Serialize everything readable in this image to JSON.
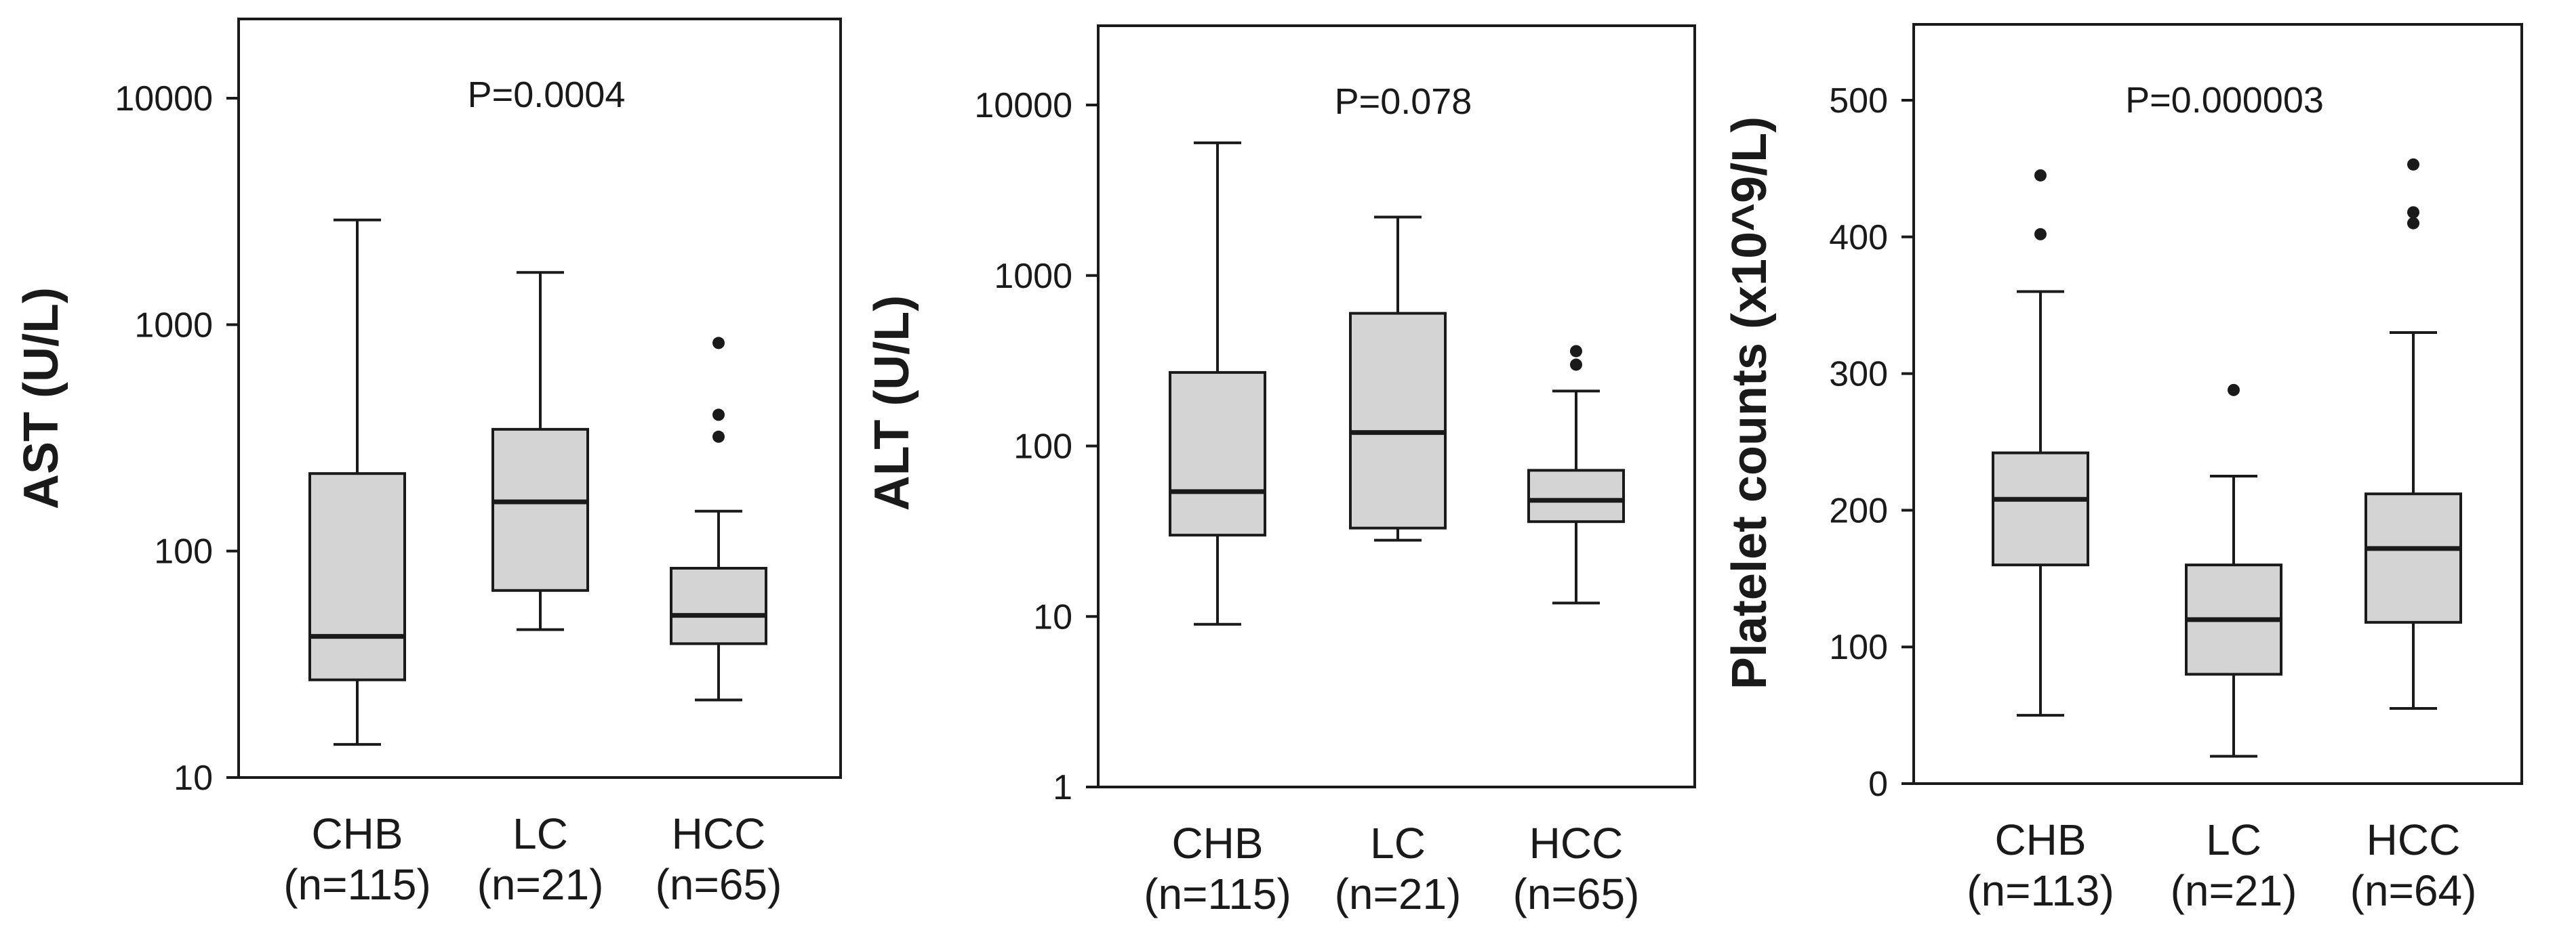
{
  "colors": {
    "box_fill": "#d4d4d4",
    "stroke": "#1a1a1a",
    "background": "#ffffff"
  },
  "chart_data": [
    {
      "type": "boxplot",
      "ylabel": "AST (U/L)",
      "yscale": "log",
      "ylim": [
        10,
        20000
      ],
      "yticks": [
        10,
        100,
        1000,
        10000
      ],
      "ytick_labels": [
        "10",
        "100",
        "1000",
        "10000"
      ],
      "annotation": "P=0.0004",
      "groups": [
        {
          "name": "CHB",
          "n_label": "(n=115)",
          "whisker_low": 14,
          "q1": 27,
          "median": 42,
          "q3": 220,
          "whisker_high": 2900,
          "outliers": []
        },
        {
          "name": "LC",
          "n_label": "(n=21)",
          "whisker_low": 45,
          "q1": 67,
          "median": 165,
          "q3": 345,
          "whisker_high": 1700,
          "outliers": []
        },
        {
          "name": "HCC",
          "n_label": "(n=65)",
          "whisker_low": 22,
          "q1": 39,
          "median": 52,
          "q3": 84,
          "whisker_high": 150,
          "outliers": [
            320,
            400,
            830
          ]
        }
      ]
    },
    {
      "type": "boxplot",
      "ylabel": "ALT (U/L)",
      "yscale": "log",
      "ylim": [
        1,
        20000
      ],
      "yticks": [
        1,
        10,
        100,
        1000,
        10000
      ],
      "ytick_labels": [
        "1",
        "10",
        "100",
        "1000",
        "10000"
      ],
      "annotation": "P=0.078",
      "groups": [
        {
          "name": "CHB",
          "n_label": "(n=115)",
          "whisker_low": 9,
          "q1": 30,
          "median": 54,
          "q3": 270,
          "whisker_high": 6000,
          "outliers": []
        },
        {
          "name": "LC",
          "n_label": "(n=21)",
          "whisker_low": 28,
          "q1": 33,
          "median": 120,
          "q3": 600,
          "whisker_high": 2200,
          "outliers": []
        },
        {
          "name": "HCC",
          "n_label": "(n=65)",
          "whisker_low": 12,
          "q1": 36,
          "median": 48,
          "q3": 72,
          "whisker_high": 210,
          "outliers": [
            300,
            360
          ]
        }
      ]
    },
    {
      "type": "boxplot",
      "ylabel": "Platelet counts (x10^9/L)",
      "yscale": "linear",
      "ylim": [
        0,
        550
      ],
      "yticks": [
        0,
        100,
        200,
        300,
        400,
        500
      ],
      "ytick_labels": [
        "0",
        "100",
        "200",
        "300",
        "400",
        "500"
      ],
      "annotation": "P=0.000003",
      "groups": [
        {
          "name": "CHB",
          "n_label": "(n=113)",
          "whisker_low": 50,
          "q1": 160,
          "median": 208,
          "q3": 242,
          "whisker_high": 360,
          "outliers": [
            402,
            445
          ]
        },
        {
          "name": "LC",
          "n_label": "(n=21)",
          "whisker_low": 20,
          "q1": 80,
          "median": 120,
          "q3": 160,
          "whisker_high": 225,
          "outliers": [
            288
          ]
        },
        {
          "name": "HCC",
          "n_label": "(n=64)",
          "whisker_low": 55,
          "q1": 118,
          "median": 172,
          "q3": 212,
          "whisker_high": 330,
          "outliers": [
            410,
            418,
            453
          ]
        }
      ]
    }
  ]
}
